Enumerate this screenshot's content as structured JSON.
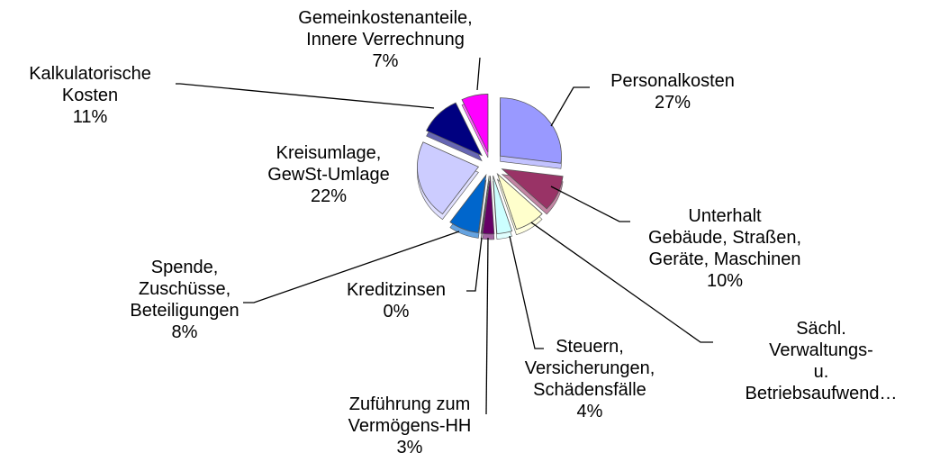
{
  "chart_data": {
    "type": "pie",
    "categories": [
      "Personalkosten",
      "Unterhalt\nGebäude, Straßen,\nGeräte, Maschinen",
      "Sächl. Verwaltungs-\nu.\nBetriebsaufwend…",
      "Steuern,\nVersicherungen,\nSchädensfälle",
      "Zuführung zum\nVermögens-HH",
      "Kreditzinsen",
      "Spende,\nZuschüsse,\nBeteiligungen",
      "Kreisumlage,\nGewSt-Umlage",
      "Kalkulatorische\nKosten",
      "Gemeinkostenanteile,\nInnere Verrechnung"
    ],
    "values": [
      27,
      10,
      8,
      4,
      3,
      0,
      8,
      22,
      11,
      7
    ],
    "value_labels": [
      "27%",
      "10%",
      null,
      "4%",
      "3%",
      "0%",
      "8%",
      "22%",
      "11%",
      "7%"
    ],
    "colors": [
      "#9999ff",
      "#993366",
      "#ffffcc",
      "#ccffff",
      "#660066",
      "#cc3366",
      "#0066cc",
      "#ccccff",
      "#000080",
      "#ff00ff"
    ]
  }
}
